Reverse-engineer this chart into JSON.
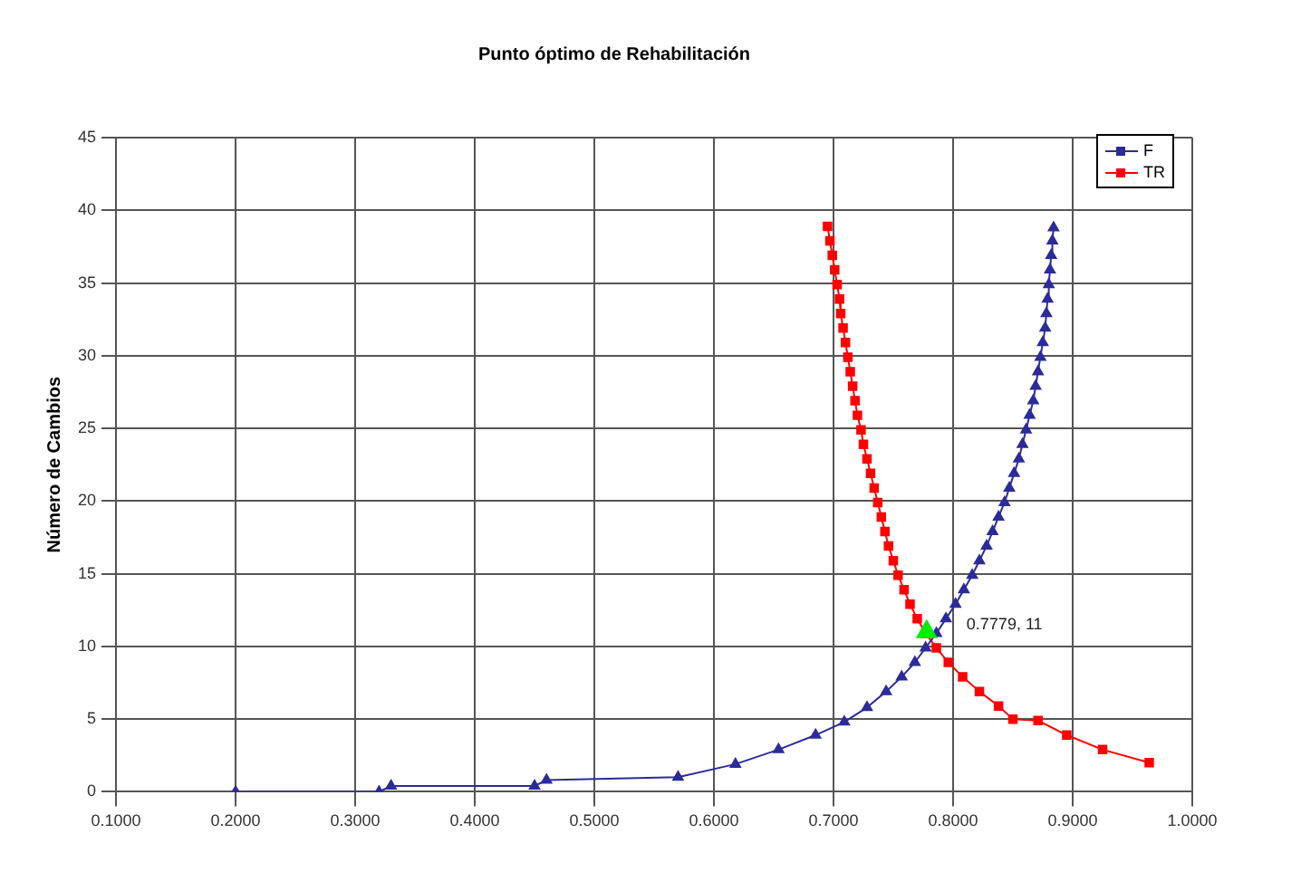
{
  "chart_data": {
    "type": "line",
    "title": "Punto óptimo de Rehabilitación",
    "ylabel": "Número de Cambios",
    "xlim": [
      0.1,
      1.0
    ],
    "xticks": [
      {
        "value": 0.1,
        "label": "0.1000"
      },
      {
        "value": 0.2,
        "label": "0.2000"
      },
      {
        "value": 0.3,
        "label": "0.3000"
      },
      {
        "value": 0.4,
        "label": "0.4000"
      },
      {
        "value": 0.5,
        "label": "0.5000"
      },
      {
        "value": 0.6,
        "label": "0.6000"
      },
      {
        "value": 0.7,
        "label": "0.7000"
      },
      {
        "value": 0.8,
        "label": "0.8000"
      },
      {
        "value": 0.9,
        "label": "0.9000"
      },
      {
        "value": 1.0,
        "label": "1.0000"
      }
    ],
    "ylim": [
      0,
      45
    ],
    "yticks": [
      0,
      5,
      10,
      15,
      20,
      25,
      30,
      35,
      40,
      45
    ],
    "grid": true,
    "legend": "top right",
    "series": [
      {
        "name": "F",
        "color": "#2b2b9a",
        "marker": "triangle",
        "x": [
          0.2,
          0.32,
          0.33,
          0.45,
          0.46,
          0.57,
          0.618,
          0.654,
          0.685,
          0.709,
          0.728,
          0.744,
          0.757,
          0.768,
          0.777,
          0.786,
          0.794,
          0.802,
          0.809,
          0.816,
          0.822,
          0.828,
          0.833,
          0.838,
          0.843,
          0.847,
          0.851,
          0.855,
          0.858,
          0.861,
          0.864,
          0.867,
          0.869,
          0.871,
          0.873,
          0.875,
          0.877,
          0.878,
          0.879,
          0.88,
          0.881,
          0.882,
          0.883,
          0.884
        ],
        "values": [
          0,
          0,
          0.4,
          0.4,
          0.8,
          1,
          1.9,
          2.9,
          3.9,
          4.8,
          5.8,
          6.9,
          7.9,
          8.9,
          9.9,
          10.9,
          11.9,
          12.9,
          13.9,
          14.9,
          15.9,
          16.9,
          17.9,
          18.9,
          19.9,
          20.9,
          21.9,
          22.9,
          23.9,
          24.9,
          25.9,
          26.9,
          27.9,
          28.9,
          29.9,
          30.9,
          31.9,
          32.9,
          33.9,
          34.9,
          35.9,
          36.9,
          37.9,
          38.8
        ]
      },
      {
        "name": "TR",
        "color": "#ff0000",
        "marker": "square",
        "x": [
          0.695,
          0.697,
          0.699,
          0.701,
          0.703,
          0.705,
          0.706,
          0.708,
          0.71,
          0.712,
          0.714,
          0.716,
          0.718,
          0.72,
          0.723,
          0.725,
          0.728,
          0.731,
          0.734,
          0.737,
          0.74,
          0.743,
          0.746,
          0.75,
          0.754,
          0.759,
          0.764,
          0.77,
          0.777,
          0.786,
          0.796,
          0.808,
          0.822,
          0.838,
          0.85,
          0.871,
          0.895,
          0.925,
          0.964
        ],
        "values": [
          38.9,
          37.9,
          36.9,
          35.9,
          34.9,
          33.9,
          32.9,
          31.9,
          30.9,
          29.9,
          28.9,
          27.9,
          26.9,
          25.9,
          24.9,
          23.9,
          22.9,
          21.9,
          20.9,
          19.9,
          18.9,
          17.9,
          16.9,
          15.9,
          14.9,
          13.9,
          12.9,
          11.9,
          10.9,
          9.9,
          8.9,
          7.9,
          6.9,
          5.9,
          5.0,
          4.9,
          3.9,
          2.9,
          2.0
        ]
      },
      {
        "type": "scatter",
        "color": "#00ee00",
        "marker": "triangle",
        "x": [
          0.7779
        ],
        "values": [
          11
        ]
      }
    ],
    "annotations": [
      {
        "text": "0.7779, 11",
        "x": 0.7779,
        "y": 11
      }
    ]
  }
}
